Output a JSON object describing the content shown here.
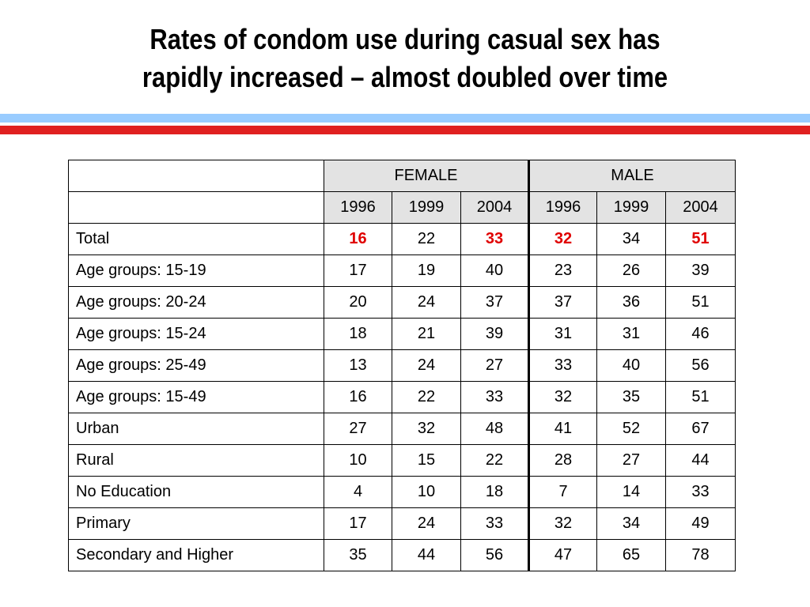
{
  "title_lines": [
    "Rates of condom use during casual sex has",
    "rapidly increased – almost doubled over time"
  ],
  "colors": {
    "top_rule": "#99ccff",
    "bottom_rule": "#e02020",
    "header_fill": "#e3e3e3",
    "highlight": "#e00000"
  },
  "chart_data": {
    "type": "table",
    "groups": [
      {
        "name": "FEMALE",
        "years": [
          "1996",
          "1999",
          "2004"
        ]
      },
      {
        "name": "MALE",
        "years": [
          "1996",
          "1999",
          "2004"
        ]
      }
    ],
    "rows": [
      {
        "label": "Total",
        "values": [
          "16",
          "22",
          "33",
          "32",
          "34",
          "51"
        ],
        "highlight": [
          true,
          false,
          true,
          true,
          false,
          true
        ]
      },
      {
        "label": "Age groups: 15-19",
        "values": [
          "17",
          "19",
          "40",
          "23",
          "26",
          "39"
        ]
      },
      {
        "label": "Age groups: 20-24",
        "values": [
          "20",
          "24",
          "37",
          "37",
          "36",
          "51"
        ]
      },
      {
        "label": "Age groups: 15-24",
        "values": [
          "18",
          "21",
          "39",
          "31",
          "31",
          "46"
        ]
      },
      {
        "label": "Age groups: 25-49",
        "values": [
          "13",
          "24",
          "27",
          "33",
          "40",
          "56"
        ]
      },
      {
        "label": "Age groups: 15-49",
        "values": [
          "16",
          "22",
          "33",
          "32",
          "35",
          "51"
        ]
      },
      {
        "label": "Urban",
        "values": [
          "27",
          "32",
          "48",
          "41",
          "52",
          "67"
        ]
      },
      {
        "label": "Rural",
        "values": [
          "10",
          "15",
          "22",
          "28",
          "27",
          "44"
        ]
      },
      {
        "label": "No Education",
        "values": [
          "4",
          "10",
          "18",
          "7",
          "14",
          "33"
        ]
      },
      {
        "label": "Primary",
        "values": [
          "17",
          "24",
          "33",
          "32",
          "34",
          "49"
        ]
      },
      {
        "label": "Secondary and Higher",
        "values": [
          "35",
          "44",
          "56",
          "47",
          "65",
          "78"
        ]
      }
    ]
  }
}
